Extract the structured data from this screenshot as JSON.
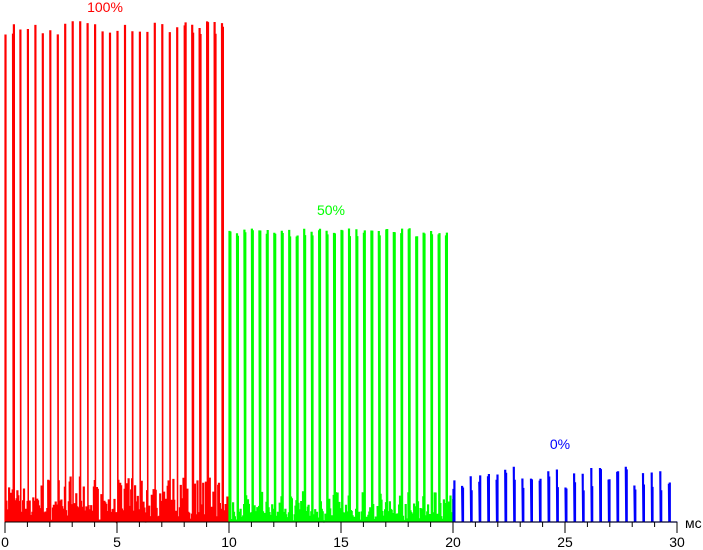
{
  "chart_data": {
    "type": "line",
    "title": "",
    "xlabel": "",
    "ylabel": "",
    "x_unit": "мс",
    "xlim": [
      0,
      30
    ],
    "x_ticks": [
      0,
      5,
      10,
      15,
      20,
      25,
      30
    ],
    "x_minor_tick_step": 1,
    "ylim_relative": [
      0,
      1
    ],
    "grid": false,
    "series": [
      {
        "name": "100%",
        "color": "#ff0000",
        "x_range": [
          0,
          10
        ],
        "pulse_count": 30,
        "peak_relative": 1.0,
        "noise_relative": 0.09
      },
      {
        "name": "50%",
        "color": "#00ff00",
        "x_range": [
          10,
          20
        ],
        "pulse_count": 30,
        "peak_relative": 0.585,
        "noise_relative": 0.06
      },
      {
        "name": "0%",
        "color": "#0000ff",
        "x_range": [
          20,
          30
        ],
        "pulse_count": 26,
        "peak_relative": 0.11,
        "noise_relative": 0.0
      }
    ]
  }
}
